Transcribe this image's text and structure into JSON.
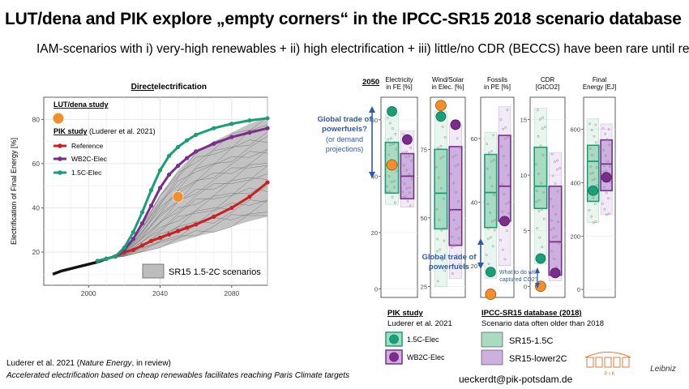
{
  "title": "LUT/dena and PIK explore „empty corners“ in the IPCC-SR15 2018 scenario database",
  "subtitle": "IAM-scenarios with i) very-high renewables + ii) high electrification + iii) little/no CDR (BECCS) have been rare until recently",
  "footer": {
    "cite_part1": "Luderer et al. 2021 (",
    "cite_journal": "Nature Energy",
    "cite_part2": ", in review)",
    "cite_line2": "Accelerated electrification based on cheap renewables facilitates reaching Paris Climate targets",
    "email": "ueckerdt@pik-potsdam.de",
    "logo_pik": "P I K",
    "logo_leibniz": "Leibniz"
  },
  "left_panel": {
    "heading_bold": "Direct",
    "heading_rest": " electrification",
    "lut_label": "LUT/dena study",
    "pik_label_bold": "PIK study",
    "pik_label_rest": " (Luderer et al. 2021)",
    "sr15_legend": "SR15 1.5-2C scenarios"
  },
  "right_panel": {
    "year_label": "2050",
    "annotation_global_trade": [
      "Global trade of",
      "powerfuels?"
    ],
    "annotation_demand": [
      "(or demand",
      "projections)"
    ],
    "annotation_global_trade2": [
      "Global trade of",
      "powerfuels"
    ],
    "annotation_co2": [
      "What to do with",
      "captured CO2?"
    ],
    "pik_legend_title": "PIK study",
    "pik_legend_sub": "Luderer et al. 2021",
    "ipcc_legend_title": "IPCC-SR15 database (2018)",
    "ipcc_legend_sub": "Scenario data often older than 2018"
  },
  "colors": {
    "reference": "#cc1f1f",
    "wb2c": "#7b2d8e",
    "c15": "#1a9e77",
    "lut": "#f28e2b",
    "sr15_fill": "#bdbdbd",
    "sr15_15c_fill": "#a8dcc2",
    "sr15_lower2c_fill": "#cdb0e0",
    "arrow_blue": "#2e5aac"
  },
  "chart_data": [
    {
      "type": "line",
      "title": "Direct electrification",
      "xlabel": "",
      "ylabel": "Electrification of Final Energy [%]",
      "xlim": [
        1975,
        2100
      ],
      "ylim": [
        5,
        90
      ],
      "xticks": [
        2000,
        2040,
        2080
      ],
      "yticks": [
        20,
        40,
        60,
        80
      ],
      "historical": {
        "x": [
          1980,
          1985,
          1990,
          1995,
          2000,
          2005,
          2010
        ],
        "y": [
          10,
          11.5,
          12.5,
          13.5,
          14.5,
          15.5,
          17
        ]
      },
      "series": [
        {
          "name": "Reference",
          "x": [
            2005,
            2010,
            2015,
            2020,
            2025,
            2030,
            2035,
            2040,
            2045,
            2050,
            2055,
            2060,
            2070,
            2080,
            2090,
            2100
          ],
          "y": [
            16,
            17,
            18,
            20,
            21,
            23,
            25,
            26.5,
            28,
            29.5,
            31,
            32.5,
            36,
            40,
            45,
            51.5
          ]
        },
        {
          "name": "WB2C-Elec",
          "x": [
            2005,
            2010,
            2015,
            2020,
            2025,
            2030,
            2035,
            2040,
            2045,
            2050,
            2055,
            2060,
            2070,
            2080,
            2090,
            2100
          ],
          "y": [
            16,
            17,
            18,
            21,
            26,
            33,
            41,
            49,
            55,
            59,
            62.5,
            65.5,
            69,
            72,
            74,
            76
          ]
        },
        {
          "name": "1.5C-Elec",
          "x": [
            2005,
            2010,
            2015,
            2020,
            2025,
            2030,
            2035,
            2040,
            2045,
            2050,
            2055,
            2060,
            2070,
            2080,
            2090,
            2100
          ],
          "y": [
            16,
            17,
            18,
            22,
            29,
            38,
            48,
            57,
            63.5,
            67.5,
            70.5,
            73,
            76,
            78,
            79.5,
            80.5
          ]
        },
        {
          "name": "LUT/dena study",
          "x": [
            2050
          ],
          "y": [
            45
          ]
        }
      ],
      "legend": [
        "LUT/dena study",
        "PIK study (Luderer et al. 2021)",
        "Reference",
        "WB2C-Elec",
        "1.5C-Elec",
        "SR15 1.5-2C scenarios"
      ],
      "sr15_band": {
        "x": [
          2010,
          2020,
          2030,
          2040,
          2050,
          2060,
          2070,
          2080,
          2090,
          2100
        ],
        "low": [
          17,
          18,
          20,
          22,
          24.5,
          27,
          29,
          31.5,
          34,
          36
        ],
        "high": [
          17,
          21,
          32,
          46,
          57,
          65,
          70,
          74,
          78,
          81
        ]
      },
      "grid": true
    },
    {
      "type": "box",
      "title": "2050",
      "panels": [
        {
          "label": [
            "Electricity",
            "in FE [%]"
          ],
          "ylim": [
            -3,
            68
          ],
          "yticks": [
            0,
            20,
            40,
            60
          ],
          "sr15_15c": {
            "q1": 34,
            "median": 44,
            "q3": 52,
            "whisker_low": 30,
            "whisker_high": 62
          },
          "sr15_lower2c": {
            "q1": 32,
            "median": 40,
            "q3": 48,
            "whisker_low": 29,
            "whisker_high": 56
          },
          "pik_15c": 63,
          "pik_wb2c": 53,
          "lut": 44
        },
        {
          "label": [
            "Wind/Solar",
            "in Elec. [%]"
          ],
          "ylim": [
            21,
            94
          ],
          "yticks": [
            25,
            50,
            75
          ],
          "sr15_15c": {
            "q1": 46,
            "median": 59,
            "q3": 75,
            "whisker_low": 25,
            "whisker_high": 89
          },
          "sr15_lower2c": {
            "q1": 40,
            "median": 53,
            "q3": 76,
            "whisker_low": 28,
            "whisker_high": 84
          },
          "pik_15c": 87,
          "pik_wb2c": 84,
          "lut": 91
        },
        {
          "label": [
            "Fossils",
            "in PE [%]"
          ],
          "ylim": [
            10,
            73
          ],
          "yticks": [
            20,
            40,
            60
          ],
          "sr15_15c": {
            "q1": 32,
            "median": 43,
            "q3": 55,
            "whisker_low": 16,
            "whisker_high": 62
          },
          "sr15_lower2c": {
            "q1": 34,
            "median": 45,
            "q3": 61,
            "whisker_low": 20,
            "whisker_high": 70
          },
          "pik_15c": 18,
          "pik_wb2c": 34,
          "lut": 11
        },
        {
          "label": [
            "CDR",
            "[GtCO2]"
          ],
          "ylim": [
            -1,
            17
          ],
          "yticks": [
            0,
            5,
            10,
            15
          ],
          "sr15_15c": {
            "q1": 7,
            "median": 9,
            "q3": 12.5,
            "whisker_low": 2,
            "whisker_high": 16
          },
          "sr15_lower2c": {
            "q1": 1,
            "median": 4,
            "q3": 9,
            "whisker_low": 0.5,
            "whisker_high": 12
          },
          "pik_15c": 2.5,
          "pik_wb2c": 1.2,
          "lut": 0
        },
        {
          "label": [
            "Final",
            "Energy [EJ]"
          ],
          "ylim": [
            -30,
            720
          ],
          "yticks": [
            0,
            200,
            400,
            600
          ],
          "sr15_15c": {
            "q1": 330,
            "median": 480,
            "q3": 540,
            "whisker_low": 250,
            "whisker_high": 640
          },
          "sr15_lower2c": {
            "q1": 370,
            "median": 470,
            "q3": 560,
            "whisker_low": 280,
            "whisker_high": 620
          },
          "pik_15c": 370,
          "pik_wb2c": 420,
          "lut": null
        }
      ],
      "legend": [
        "PIK study",
        "Luderer et al. 2021",
        "1.5C-Elec",
        "WB2C-Elec",
        "IPCC-SR15 database (2018)",
        "Scenario data often older than 2018",
        "SR15-1.5C",
        "SR15-lower2C"
      ]
    }
  ]
}
